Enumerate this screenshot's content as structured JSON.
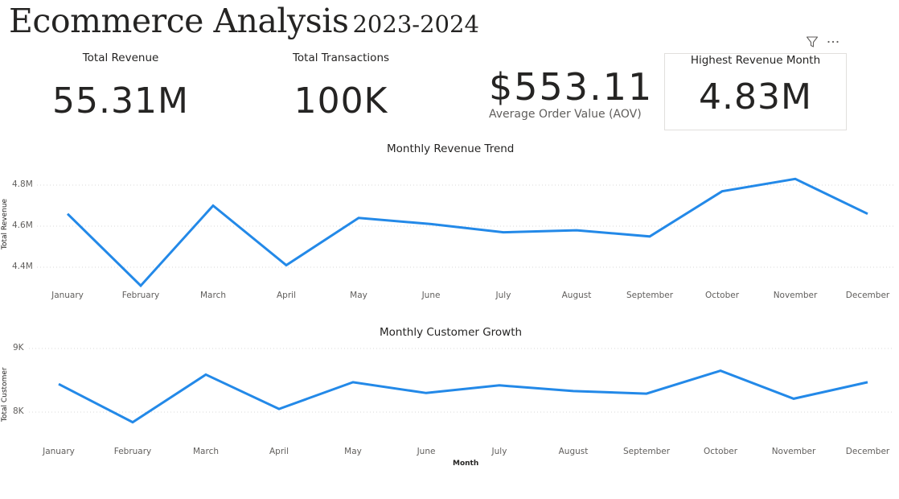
{
  "header": {
    "title": "Ecommerce Analysis",
    "years": "2023-2024"
  },
  "visual_header": {
    "filter_icon": "funnel-icon",
    "more_icon": "ellipsis-icon",
    "filter_glyph": "▽",
    "more_glyph": "···"
  },
  "kpis": {
    "total_revenue": {
      "label": "Total Revenue",
      "value": "55.31M"
    },
    "total_transactions": {
      "label": "Total Transactions",
      "value": "100K"
    },
    "aov": {
      "label": "Average Order Value (AOV)",
      "value": "$553.11"
    },
    "highest_revenue_month": {
      "label": "Highest Revenue Month",
      "value": "4.83M"
    }
  },
  "colors": {
    "line": "#2389e8",
    "grid": "#d9d9d9",
    "text": "#252423",
    "muted": "#605e5c"
  },
  "chart_data": [
    {
      "type": "line",
      "title": "Monthly Revenue Trend",
      "xlabel": "",
      "ylabel": "Total Revenue",
      "categories": [
        "January",
        "February",
        "March",
        "April",
        "May",
        "June",
        "July",
        "August",
        "September",
        "October",
        "November",
        "December"
      ],
      "series": [
        {
          "name": "Total Revenue",
          "values": [
            4.66,
            4.31,
            4.7,
            4.41,
            4.64,
            4.61,
            4.57,
            4.58,
            4.55,
            4.77,
            4.83,
            4.66
          ]
        }
      ],
      "unit": "M",
      "yticks": [
        "4.4M",
        "4.6M",
        "4.8M"
      ],
      "ytick_values": [
        4.4,
        4.6,
        4.8
      ],
      "ylim": [
        4.3,
        4.85
      ],
      "grid": true,
      "legend": "none"
    },
    {
      "type": "line",
      "title": "Monthly Customer Growth",
      "xlabel": "Month",
      "ylabel": "Total Customer",
      "categories": [
        "January",
        "February",
        "March",
        "April",
        "May",
        "June",
        "July",
        "August",
        "September",
        "October",
        "November",
        "December"
      ],
      "series": [
        {
          "name": "Total Customer",
          "values": [
            8440,
            7840,
            8590,
            8050,
            8470,
            8300,
            8420,
            8330,
            8290,
            8650,
            8210,
            8470
          ]
        }
      ],
      "unit": "K",
      "yticks": [
        "8K",
        "9K"
      ],
      "ytick_values": [
        8000,
        9000
      ],
      "ylim": [
        7800,
        9000
      ],
      "grid": true,
      "legend": "none"
    }
  ]
}
